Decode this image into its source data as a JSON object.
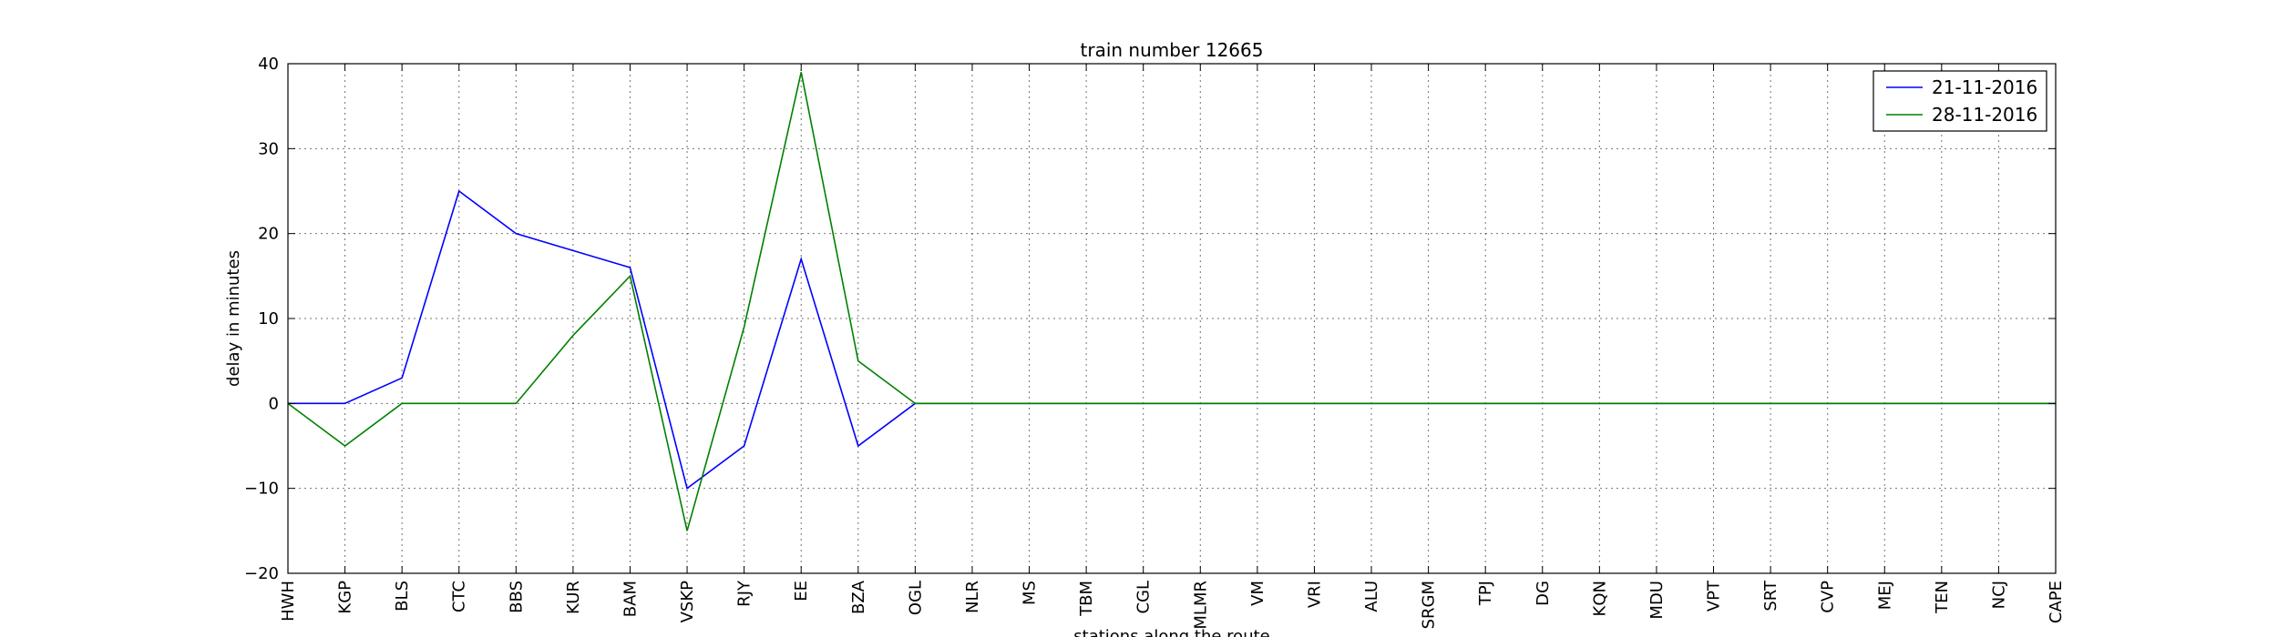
{
  "chart_data": {
    "type": "line",
    "title": "train number 12665",
    "xlabel": "stations along the route",
    "ylabel": "delay in minutes",
    "categories": [
      "HWH",
      "KGP",
      "BLS",
      "CTC",
      "BBS",
      "KUR",
      "BAM",
      "VSKP",
      "RJY",
      "EE",
      "BZA",
      "OGL",
      "NLR",
      "MS",
      "TBM",
      "CGL",
      "MLMR",
      "VM",
      "VRI",
      "ALU",
      "SRGM",
      "TPJ",
      "DG",
      "KQN",
      "MDU",
      "VPT",
      "SRT",
      "CVP",
      "MEJ",
      "TEN",
      "NCJ",
      "CAPE"
    ],
    "yticks": [
      "40",
      "30",
      "20",
      "10",
      "0",
      "−10",
      "−20"
    ],
    "ylim": [
      -20,
      40
    ],
    "grid": true,
    "legend_position": "top-right",
    "series": [
      {
        "name": "21-11-2016",
        "color": "#0000ff",
        "values": [
          0,
          0,
          3,
          25,
          20,
          18,
          16,
          -10,
          -5,
          17,
          -5,
          0,
          0,
          0,
          0,
          0,
          0,
          0,
          0,
          0,
          0,
          0,
          0,
          0,
          0,
          0,
          0,
          0,
          0,
          0,
          0,
          0
        ]
      },
      {
        "name": "28-11-2016",
        "color": "#008000",
        "values": [
          0,
          -5,
          0,
          0,
          0,
          8,
          15,
          -15,
          9,
          39,
          5,
          0,
          0,
          0,
          0,
          0,
          0,
          0,
          0,
          0,
          0,
          0,
          0,
          0,
          0,
          0,
          0,
          0,
          0,
          0,
          0,
          0
        ]
      }
    ]
  }
}
